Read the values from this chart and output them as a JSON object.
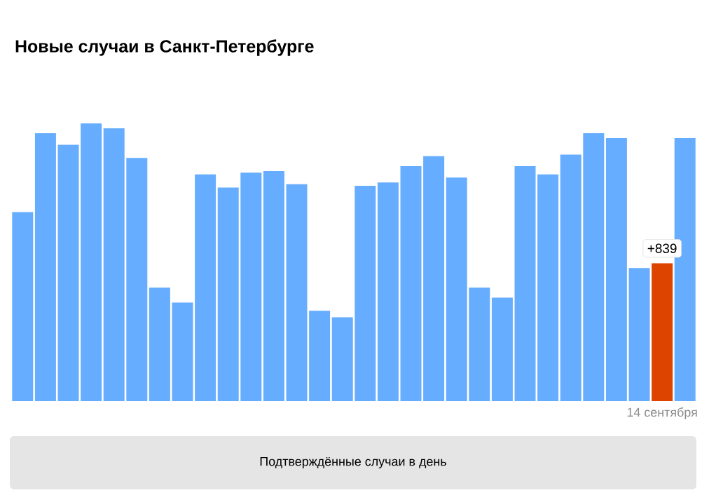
{
  "chart_data": {
    "type": "bar",
    "title": "Новые случаи в Санкт-Петербурге",
    "xlabel": "Подтверждённые случаи в день",
    "categories": [
      null,
      null,
      null,
      null,
      null,
      null,
      null,
      null,
      null,
      null,
      null,
      null,
      null,
      null,
      null,
      null,
      null,
      null,
      null,
      null,
      null,
      null,
      null,
      null,
      null,
      null,
      null,
      null,
      "14 сентября",
      null
    ],
    "values": [
      1150,
      1630,
      1560,
      1690,
      1660,
      1480,
      690,
      600,
      1380,
      1300,
      1390,
      1400,
      1320,
      550,
      510,
      1310,
      1330,
      1430,
      1490,
      1360,
      690,
      630,
      1430,
      1380,
      1500,
      1630,
      1600,
      810,
      839,
      1600
    ],
    "colors": [
      "#66adff",
      "#66adff",
      "#66adff",
      "#66adff",
      "#66adff",
      "#66adff",
      "#66adff",
      "#66adff",
      "#66adff",
      "#66adff",
      "#66adff",
      "#66adff",
      "#66adff",
      "#66adff",
      "#66adff",
      "#66adff",
      "#66adff",
      "#66adff",
      "#66adff",
      "#66adff",
      "#66adff",
      "#66adff",
      "#66adff",
      "#66adff",
      "#66adff",
      "#66adff",
      "#66adff",
      "#66adff",
      "#dd4400",
      "#66adff"
    ],
    "value_labels": [
      null,
      null,
      null,
      null,
      null,
      null,
      null,
      null,
      null,
      null,
      null,
      null,
      null,
      null,
      null,
      null,
      null,
      null,
      null,
      null,
      null,
      null,
      null,
      null,
      null,
      null,
      null,
      null,
      "+839",
      null
    ]
  }
}
